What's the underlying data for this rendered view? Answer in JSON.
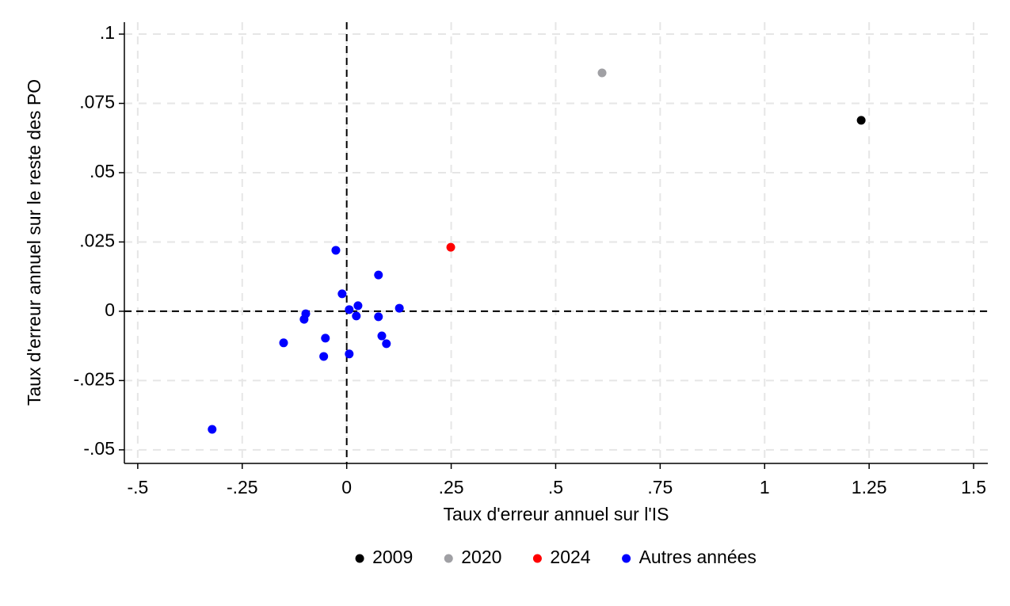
{
  "chart_data": {
    "type": "scatter",
    "x_label": "Taux d'erreur annuel sur l'IS",
    "y_label": "Taux d'erreur annuel sur le reste des PO",
    "xlim": [
      -0.532,
      1.534
    ],
    "ylim": [
      -0.0549,
      0.1043
    ],
    "xticks": [
      {
        "value": -0.5,
        "label": "-.5"
      },
      {
        "value": -0.25,
        "label": "-.25"
      },
      0,
      {
        "value": 0.25,
        "label": ".25"
      },
      {
        "value": 0.5,
        "label": ".5"
      },
      {
        "value": 0.75,
        "label": ".75"
      },
      1,
      1.25,
      1.5
    ],
    "yticks": [
      {
        "value": -0.05,
        "label": "-.05"
      },
      {
        "value": -0.025,
        "label": "-.025"
      },
      0,
      {
        "value": 0.025,
        "label": ".025"
      },
      {
        "value": 0.05,
        "label": ".05"
      },
      {
        "value": 0.075,
        "label": ".075"
      },
      {
        "value": 0.1,
        "label": ".1"
      }
    ],
    "grid": true,
    "xline": 0,
    "yline": 0,
    "legend": "bottom",
    "series": [
      {
        "name": "2009",
        "color": "#000000",
        "x": [
          1.231
        ],
        "y": [
          0.0689
        ]
      },
      {
        "name": "2020",
        "color": "#a0a0a4",
        "x": [
          0.611
        ],
        "y": [
          0.086
        ]
      },
      {
        "name": "2024",
        "color": "#ff0000",
        "x": [
          0.249
        ],
        "y": [
          0.0231
        ]
      },
      {
        "name": "Autres années",
        "color": "#0000ff",
        "x": [
          -0.026,
          0.076,
          -0.011,
          0.006,
          0.027,
          0.023,
          0.076,
          0.126,
          -0.098,
          -0.102,
          -0.051,
          0.084,
          0.095,
          -0.151,
          -0.055,
          0.006,
          -0.322
        ],
        "y": [
          0.022,
          0.0131,
          0.0063,
          0.0006,
          0.002,
          -0.0017,
          -0.002,
          0.0011,
          -0.0009,
          -0.0029,
          -0.0097,
          -0.0089,
          -0.0117,
          -0.0114,
          -0.0163,
          -0.0154,
          -0.0426
        ]
      }
    ]
  }
}
